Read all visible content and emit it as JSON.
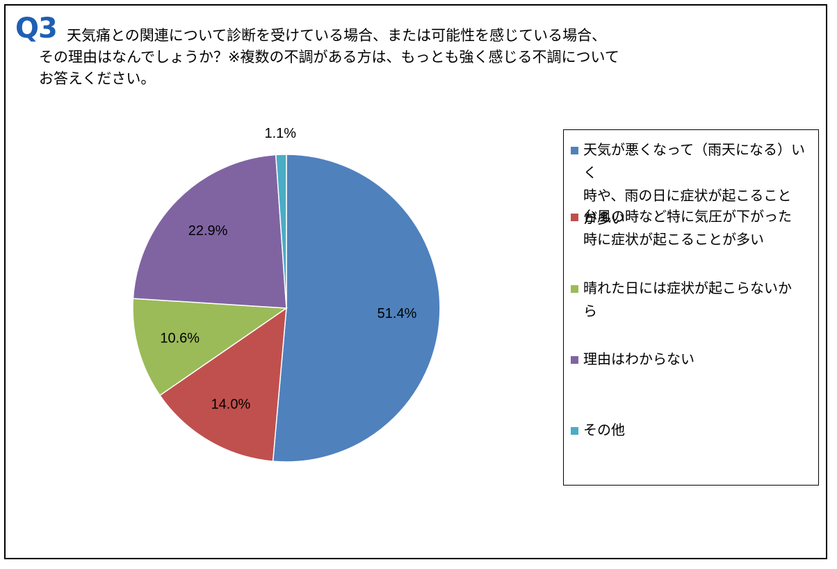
{
  "question": {
    "label": "Q3",
    "lines": [
      "天気痛との関連について診断を受けている場合、または可能性を感じている場合、",
      "その理由はなんでしょうか？※複数の不調がある方は、もっとも強く感じる不調について",
      "お答えください。"
    ]
  },
  "chart_data": {
    "type": "pie",
    "title": "",
    "start_angle_deg": 0,
    "direction": "clockwise",
    "legend_position": "right",
    "slices": [
      {
        "label": "天気が悪くなって（雨天になる）いく時や、雨の日に症状が起こることが多い",
        "value": 51.4,
        "display": "51.4%",
        "color": "#4f81bd"
      },
      {
        "label": "台風の時など特に気圧が下がった時に症状が起こることが多い",
        "value": 14.0,
        "display": "14.0%",
        "color": "#c0504d"
      },
      {
        "label": "晴れた日には症状が起こらないから",
        "value": 10.6,
        "display": "10.6%",
        "color": "#9bbb59"
      },
      {
        "label": "理由はわからない",
        "value": 22.9,
        "display": "22.9%",
        "color": "#8064a2"
      },
      {
        "label": "その他",
        "value": 1.1,
        "display": "1.1%",
        "color": "#4bacc6"
      }
    ]
  },
  "legend": {
    "items": [
      {
        "lines": [
          "天気が悪くなって（雨天になる）いく",
          "時や、雨の日に症状が起こること",
          "が多い"
        ]
      },
      {
        "lines": [
          "台風の時など特に気圧が下がった",
          "時に症状が起こることが多い"
        ]
      },
      {
        "lines": [
          "晴れた日には症状が起こらないか",
          "ら"
        ]
      },
      {
        "lines": [
          "理由はわからない"
        ]
      },
      {
        "lines": [
          "その他"
        ]
      }
    ]
  }
}
